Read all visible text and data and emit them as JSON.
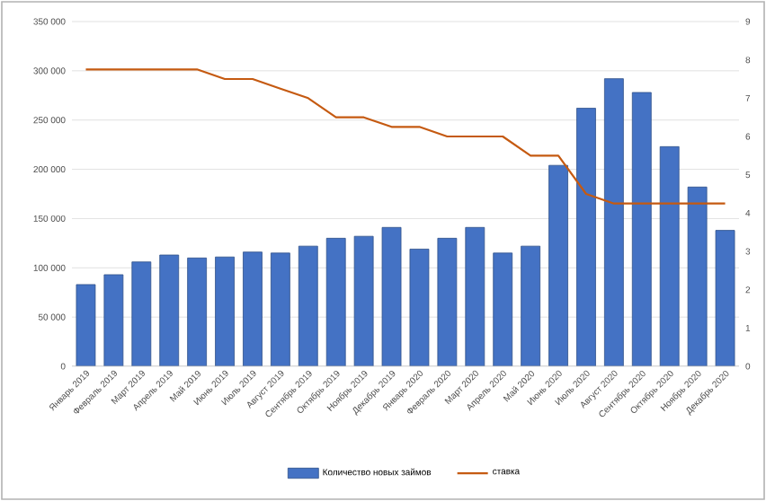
{
  "chart_data": {
    "type": "bar",
    "categories": [
      "Январь 2019",
      "Февраль 2019",
      "Март 2019",
      "Апрель 2019",
      "Май 2019",
      "Июнь 2019",
      "Июль 2019",
      "Август 2019",
      "Сентябрь 2019",
      "Октябрь 2019",
      "Ноябрь 2019",
      "Декабрь 2019",
      "Январь 2020",
      "Февраль 2020",
      "Март 2020",
      "Апрель 2020",
      "Май 2020",
      "Июнь 2020",
      "Июль 2020",
      "Август 2020",
      "Сентябрь 2020",
      "Октябрь 2020",
      "Ноябрь 2020",
      "Декабрь 2020"
    ],
    "series": [
      {
        "name": "Количество новых займов",
        "color": "#4472c4",
        "values": [
          83000,
          93000,
          106000,
          113000,
          110000,
          111000,
          116000,
          115000,
          122000,
          130000,
          132000,
          141000,
          119000,
          130000,
          141000,
          115000,
          122000,
          204000,
          262000,
          292000,
          278000,
          223000,
          182000,
          138000
        ]
      },
      {
        "name": "ставка",
        "type": "line",
        "axis": "y2",
        "color": "#c55a11",
        "values": [
          7.75,
          7.75,
          7.75,
          7.75,
          7.75,
          7.5,
          7.5,
          7.25,
          7.0,
          6.5,
          6.5,
          6.25,
          6.25,
          6.0,
          6.0,
          6.0,
          5.5,
          5.5,
          4.5,
          4.25,
          4.25,
          4.25,
          4.25,
          4.25
        ]
      }
    ],
    "ylim": [
      0,
      350000
    ],
    "yticks": [
      {
        "value": 0,
        "label": "0"
      },
      {
        "value": 50000,
        "label": "50 000"
      },
      {
        "value": 100000,
        "label": "100 000"
      },
      {
        "value": 150000,
        "label": "150 000"
      },
      {
        "value": 200000,
        "label": "200 000"
      },
      {
        "value": 250000,
        "label": "250 000"
      },
      {
        "value": 300000,
        "label": "300 000"
      },
      {
        "value": 350000,
        "label": "350 000"
      }
    ],
    "y2lim": [
      0,
      9
    ],
    "y2ticks": [
      0,
      1,
      2,
      3,
      4,
      5,
      6,
      7,
      8,
      9
    ],
    "grid": "y",
    "legend": "bottom",
    "marker": "none",
    "line_style": "solid"
  }
}
